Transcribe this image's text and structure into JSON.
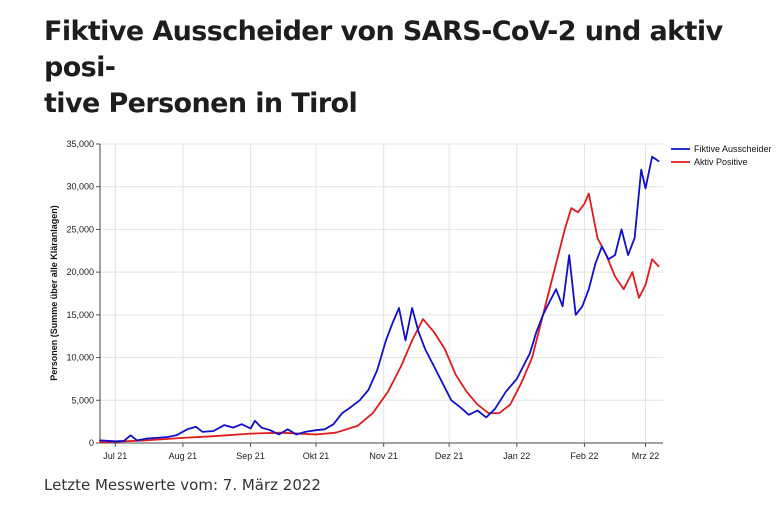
{
  "title": "Fiktive Ausscheider von SARS-CoV-2 und aktiv posi-tive Personen in Tirol",
  "title_lines": [
    "Fiktive Ausscheider von SARS-CoV-2 und aktiv posi-",
    "tive Personen in Tirol"
  ],
  "footer": "Letzte Messwerte vom: 7. März 2022",
  "chart_data": {
    "type": "line",
    "xlabel": "",
    "ylabel": "Personen (Summe über alle Kläranlagen)",
    "ylim": [
      0,
      35000
    ],
    "yticks": [
      0,
      5000,
      10000,
      15000,
      20000,
      25000,
      30000,
      35000
    ],
    "ytick_labels": [
      "0",
      "5,000",
      "10,000",
      "15,000",
      "20,000",
      "25,000",
      "30,000",
      "35,000"
    ],
    "xlim": [
      "2021-06-24",
      "2022-03-09"
    ],
    "xticks": [
      "2021-07-01",
      "2021-08-01",
      "2021-09-01",
      "2021-10-01",
      "2021-11-01",
      "2021-12-01",
      "2022-01-01",
      "2022-02-01",
      "2022-03-01"
    ],
    "xtick_labels": [
      "Jul 21",
      "Aug 21",
      "Sep 21",
      "Okt 21",
      "Nov 21",
      "Dez 21",
      "Jan 22",
      "Feb 22",
      "Mrz 22"
    ],
    "grid": true,
    "legend": "top-right",
    "series": [
      {
        "name": "Fiktive Ausscheider",
        "color": "#1010cc",
        "points": [
          [
            "2021-06-24",
            300
          ],
          [
            "2021-07-01",
            200
          ],
          [
            "2021-07-05",
            250
          ],
          [
            "2021-07-08",
            900
          ],
          [
            "2021-07-11",
            300
          ],
          [
            "2021-07-15",
            500
          ],
          [
            "2021-07-20",
            600
          ],
          [
            "2021-07-25",
            700
          ],
          [
            "2021-07-29",
            900
          ],
          [
            "2021-08-03",
            1600
          ],
          [
            "2021-08-07",
            1900
          ],
          [
            "2021-08-10",
            1300
          ],
          [
            "2021-08-15",
            1400
          ],
          [
            "2021-08-20",
            2100
          ],
          [
            "2021-08-24",
            1800
          ],
          [
            "2021-08-28",
            2200
          ],
          [
            "2021-09-01",
            1700
          ],
          [
            "2021-09-03",
            2600
          ],
          [
            "2021-09-06",
            1800
          ],
          [
            "2021-09-10",
            1500
          ],
          [
            "2021-09-14",
            1000
          ],
          [
            "2021-09-18",
            1600
          ],
          [
            "2021-09-22",
            1000
          ],
          [
            "2021-09-26",
            1300
          ],
          [
            "2021-10-01",
            1500
          ],
          [
            "2021-10-05",
            1600
          ],
          [
            "2021-10-09",
            2200
          ],
          [
            "2021-10-13",
            3500
          ],
          [
            "2021-10-17",
            4200
          ],
          [
            "2021-10-21",
            5000
          ],
          [
            "2021-10-25",
            6200
          ],
          [
            "2021-10-29",
            8500
          ],
          [
            "2021-11-02",
            12000
          ],
          [
            "2021-11-05",
            14000
          ],
          [
            "2021-11-08",
            15800
          ],
          [
            "2021-11-11",
            12000
          ],
          [
            "2021-11-14",
            15800
          ],
          [
            "2021-11-17",
            13000
          ],
          [
            "2021-11-20",
            11000
          ],
          [
            "2021-11-24",
            9000
          ],
          [
            "2021-11-28",
            7000
          ],
          [
            "2021-12-02",
            5000
          ],
          [
            "2021-12-06",
            4200
          ],
          [
            "2021-12-10",
            3300
          ],
          [
            "2021-12-14",
            3800
          ],
          [
            "2021-12-18",
            3000
          ],
          [
            "2021-12-22",
            4000
          ],
          [
            "2021-12-27",
            6000
          ],
          [
            "2022-01-01",
            7500
          ],
          [
            "2022-01-04",
            9000
          ],
          [
            "2022-01-07",
            10500
          ],
          [
            "2022-01-10",
            13000
          ],
          [
            "2022-01-13",
            15000
          ],
          [
            "2022-01-16",
            16500
          ],
          [
            "2022-01-19",
            18000
          ],
          [
            "2022-01-22",
            16000
          ],
          [
            "2022-01-25",
            22000
          ],
          [
            "2022-01-28",
            15000
          ],
          [
            "2022-01-31",
            16000
          ],
          [
            "2022-02-03",
            18000
          ],
          [
            "2022-02-06",
            21000
          ],
          [
            "2022-02-09",
            23000
          ],
          [
            "2022-02-12",
            21500
          ],
          [
            "2022-02-15",
            22000
          ],
          [
            "2022-02-18",
            25000
          ],
          [
            "2022-02-21",
            22000
          ],
          [
            "2022-02-24",
            24000
          ],
          [
            "2022-02-27",
            32000
          ],
          [
            "2022-03-01",
            29800
          ],
          [
            "2022-03-04",
            33500
          ],
          [
            "2022-03-07",
            33000
          ]
        ]
      },
      {
        "name": "Aktiv Positive",
        "color": "#e01b1b",
        "points": [
          [
            "2021-06-24",
            100
          ],
          [
            "2021-07-01",
            150
          ],
          [
            "2021-07-15",
            300
          ],
          [
            "2021-08-01",
            600
          ],
          [
            "2021-08-15",
            800
          ],
          [
            "2021-09-01",
            1100
          ],
          [
            "2021-09-15",
            1200
          ],
          [
            "2021-10-01",
            1000
          ],
          [
            "2021-10-10",
            1200
          ],
          [
            "2021-10-20",
            2000
          ],
          [
            "2021-10-27",
            3500
          ],
          [
            "2021-11-03",
            6000
          ],
          [
            "2021-11-09",
            9000
          ],
          [
            "2021-11-14",
            12000
          ],
          [
            "2021-11-19",
            14500
          ],
          [
            "2021-11-24",
            13000
          ],
          [
            "2021-11-29",
            11000
          ],
          [
            "2021-12-04",
            8000
          ],
          [
            "2021-12-09",
            6000
          ],
          [
            "2021-12-14",
            4500
          ],
          [
            "2021-12-19",
            3500
          ],
          [
            "2021-12-24",
            3500
          ],
          [
            "2021-12-29",
            4500
          ],
          [
            "2022-01-03",
            7000
          ],
          [
            "2022-01-08",
            10000
          ],
          [
            "2022-01-13",
            15000
          ],
          [
            "2022-01-18",
            20000
          ],
          [
            "2022-01-23",
            25000
          ],
          [
            "2022-01-26",
            27500
          ],
          [
            "2022-01-29",
            27000
          ],
          [
            "2022-02-01",
            28000
          ],
          [
            "2022-02-03",
            29200
          ],
          [
            "2022-02-07",
            24000
          ],
          [
            "2022-02-11",
            22000
          ],
          [
            "2022-02-15",
            19500
          ],
          [
            "2022-02-19",
            18000
          ],
          [
            "2022-02-23",
            20000
          ],
          [
            "2022-02-26",
            17000
          ],
          [
            "2022-03-01",
            18500
          ],
          [
            "2022-03-04",
            21500
          ],
          [
            "2022-03-07",
            20700
          ]
        ]
      }
    ]
  }
}
